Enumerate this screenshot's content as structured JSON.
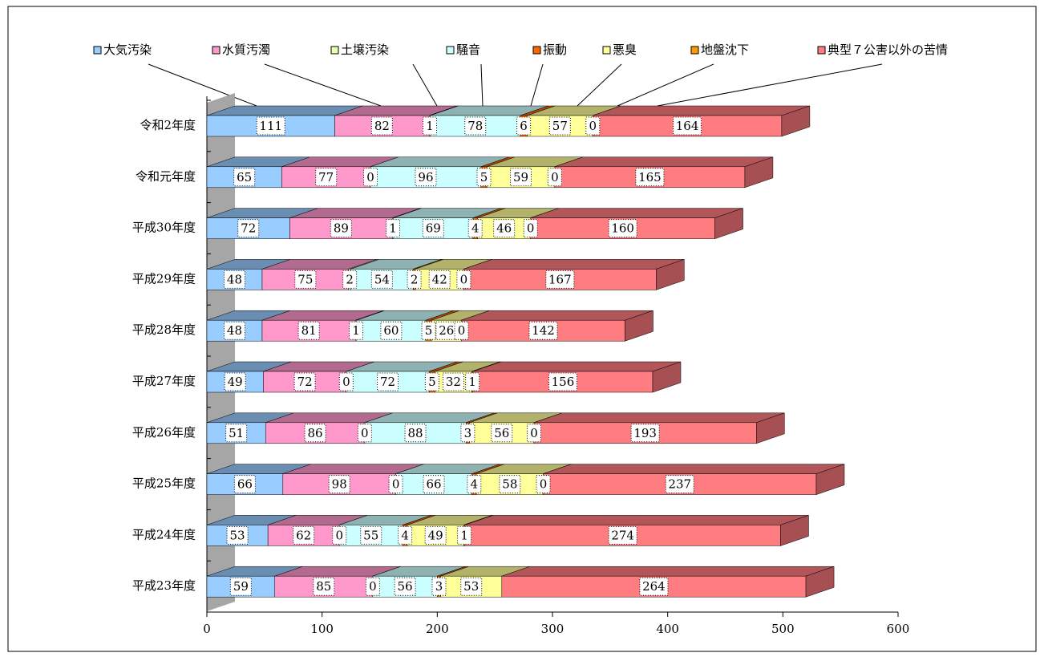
{
  "chart_data": {
    "type": "stacked-bar-3d",
    "orientation": "horizontal",
    "categories": [
      "令和2年度",
      "令和元年度",
      "平成30年度",
      "平成29年度",
      "平成28年度",
      "平成27年度",
      "平成26年度",
      "平成25年度",
      "平成24年度",
      "平成23年度"
    ],
    "series": [
      {
        "name": "大気汚染",
        "color": "#99ccff",
        "values": [
          111,
          65,
          72,
          48,
          48,
          49,
          51,
          66,
          53,
          59
        ]
      },
      {
        "name": "水質汚濁",
        "color": "#ff99cc",
        "values": [
          82,
          77,
          89,
          75,
          81,
          72,
          86,
          98,
          62,
          85
        ]
      },
      {
        "name": "土壌汚染",
        "color": "#e6ffb3",
        "values": [
          1,
          0,
          1,
          2,
          1,
          0,
          0,
          0,
          0,
          0
        ]
      },
      {
        "name": "騒音",
        "color": "#ccffff",
        "values": [
          78,
          96,
          69,
          54,
          60,
          72,
          88,
          66,
          55,
          56
        ]
      },
      {
        "name": "振動",
        "color": "#ff6600",
        "values": [
          6,
          5,
          4,
          2,
          5,
          5,
          3,
          4,
          4,
          3
        ]
      },
      {
        "name": "悪臭",
        "color": "#ffff99",
        "values": [
          57,
          59,
          46,
          42,
          26,
          32,
          56,
          58,
          49,
          53
        ]
      },
      {
        "name": "地盤沈下",
        "color": "#ff9900",
        "values": [
          0,
          0,
          0,
          0,
          0,
          1,
          0,
          0,
          1,
          null
        ]
      },
      {
        "name": "典型７公害以外の苦情",
        "color": "#ff7c80",
        "values": [
          164,
          165,
          160,
          167,
          142,
          156,
          193,
          237,
          274,
          264
        ]
      }
    ],
    "xlim": [
      0,
      600
    ],
    "xticks": [
      0,
      100,
      200,
      300,
      400,
      500,
      600
    ]
  }
}
